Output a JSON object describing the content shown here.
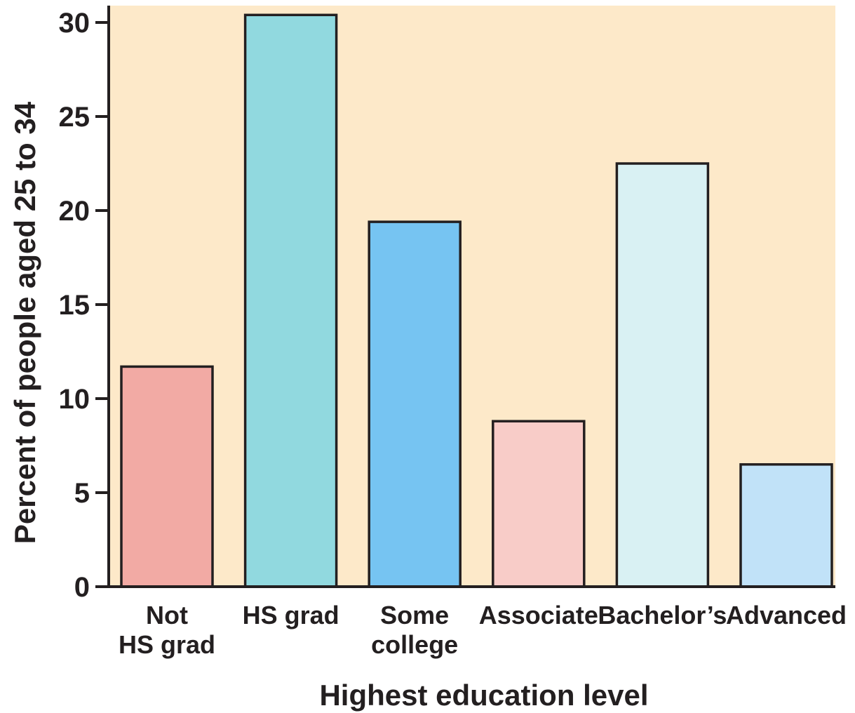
{
  "chart_data": {
    "type": "bar",
    "title": "",
    "xlabel": "Highest education level",
    "ylabel": "Percent of people aged 25 to 34",
    "categories": [
      [
        "Not",
        "HS grad"
      ],
      [
        "HS grad"
      ],
      [
        "Some",
        "college"
      ],
      [
        "Associate"
      ],
      [
        "Bachelor’s"
      ],
      [
        "Advanced"
      ]
    ],
    "values": [
      11.7,
      30.4,
      19.4,
      8.8,
      22.5,
      6.5
    ],
    "bar_colors": [
      "#f2aaa4",
      "#91d9df",
      "#76c4f2",
      "#f8ccc8",
      "#d9f1f3",
      "#c1e2f8"
    ],
    "plot_background": "#fde9c9",
    "yticks": [
      0,
      5,
      10,
      15,
      20,
      25,
      30
    ],
    "ylim": [
      0,
      30.9
    ],
    "grid": false,
    "legend": "none"
  }
}
